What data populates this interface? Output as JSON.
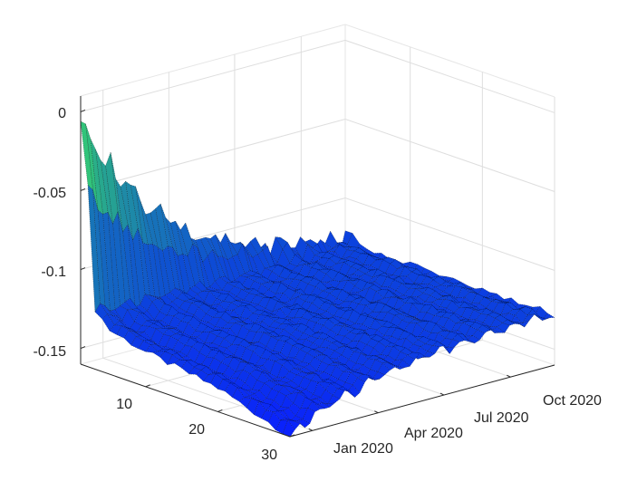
{
  "chart_data": {
    "type": "surface",
    "title": "",
    "xlabel": "",
    "ylabel": "",
    "zlabel": "",
    "grid": true,
    "zlim": [
      -0.16,
      0.01
    ],
    "z_ticks": [
      {
        "value": 0,
        "label": "0"
      },
      {
        "value": -0.05,
        "label": "-0.05"
      },
      {
        "value": -0.1,
        "label": "-0.1"
      },
      {
        "value": -0.15,
        "label": "-0.15"
      }
    ],
    "maturity_ticks": [
      {
        "value": 10,
        "label": "10"
      },
      {
        "value": 20,
        "label": "20"
      },
      {
        "value": 30,
        "label": "30"
      }
    ],
    "maturity_range": [
      1,
      30
    ],
    "date_ticks": [
      {
        "value": "2020-01-01",
        "label": "Jan 2020"
      },
      {
        "value": "2020-04-01",
        "label": "Apr 2020"
      },
      {
        "value": "2020-07-01",
        "label": "Jul 2020"
      },
      {
        "value": "2020-10-01",
        "label": "Oct 2020"
      }
    ],
    "date_range": [
      "2019-12-01",
      "2020-12-01"
    ],
    "colormap": [
      "#0a1eff",
      "#0d4ad6",
      "#1a7fb0",
      "#2fc07a",
      "#3ce07a"
    ],
    "mesh_color": "#000000",
    "surface_profile": {
      "maturity": [
        1,
        2,
        3,
        5,
        10,
        20,
        30
      ],
      "level_at_start": [
        0.0,
        -0.05,
        -0.122,
        -0.132,
        -0.138,
        -0.145,
        -0.16
      ],
      "level_at_end": [
        -0.13,
        -0.128,
        -0.127,
        -0.126,
        -0.126,
        -0.126,
        -0.126
      ]
    }
  }
}
